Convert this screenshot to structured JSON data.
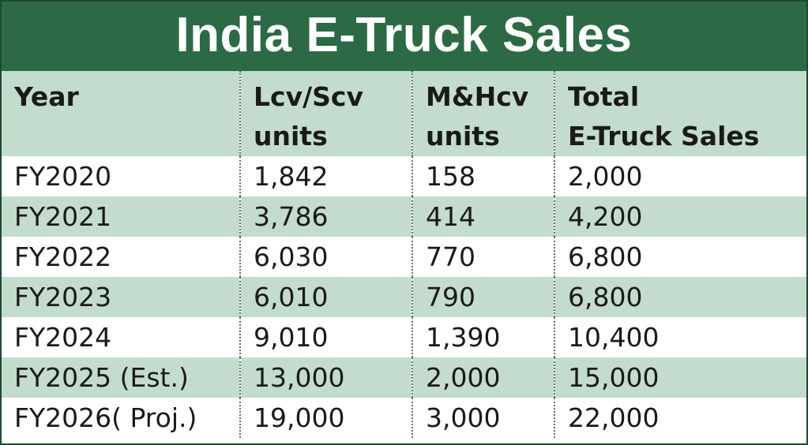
{
  "title": "India E-Truck Sales",
  "colors": {
    "title_bg": "#2b6a45",
    "band": "#c3dccd",
    "title_text": "#ffffff"
  },
  "headers": [
    {
      "line1": "Year",
      "line2": ""
    },
    {
      "line1": "Lcv/Scv",
      "line2": "units"
    },
    {
      "line1": "M&Hcv",
      "line2": "units"
    },
    {
      "line1": "Total",
      "line2": "E-Truck Sales"
    }
  ],
  "rows": [
    [
      "FY2020",
      "1,842",
      "158",
      "2,000"
    ],
    [
      "FY2021",
      "3,786",
      "414",
      "4,200"
    ],
    [
      "FY2022",
      "6,030",
      "770",
      "6,800"
    ],
    [
      "FY2023",
      "6,010",
      "790",
      "6,800"
    ],
    [
      "FY2024",
      "9,010",
      "1,390",
      "10,400"
    ],
    [
      "FY2025 (Est.)",
      "13,000",
      "2,000",
      "15,000"
    ],
    [
      "FY2026( Proj.)",
      "19,000",
      "3,000",
      "22,000"
    ]
  ]
}
